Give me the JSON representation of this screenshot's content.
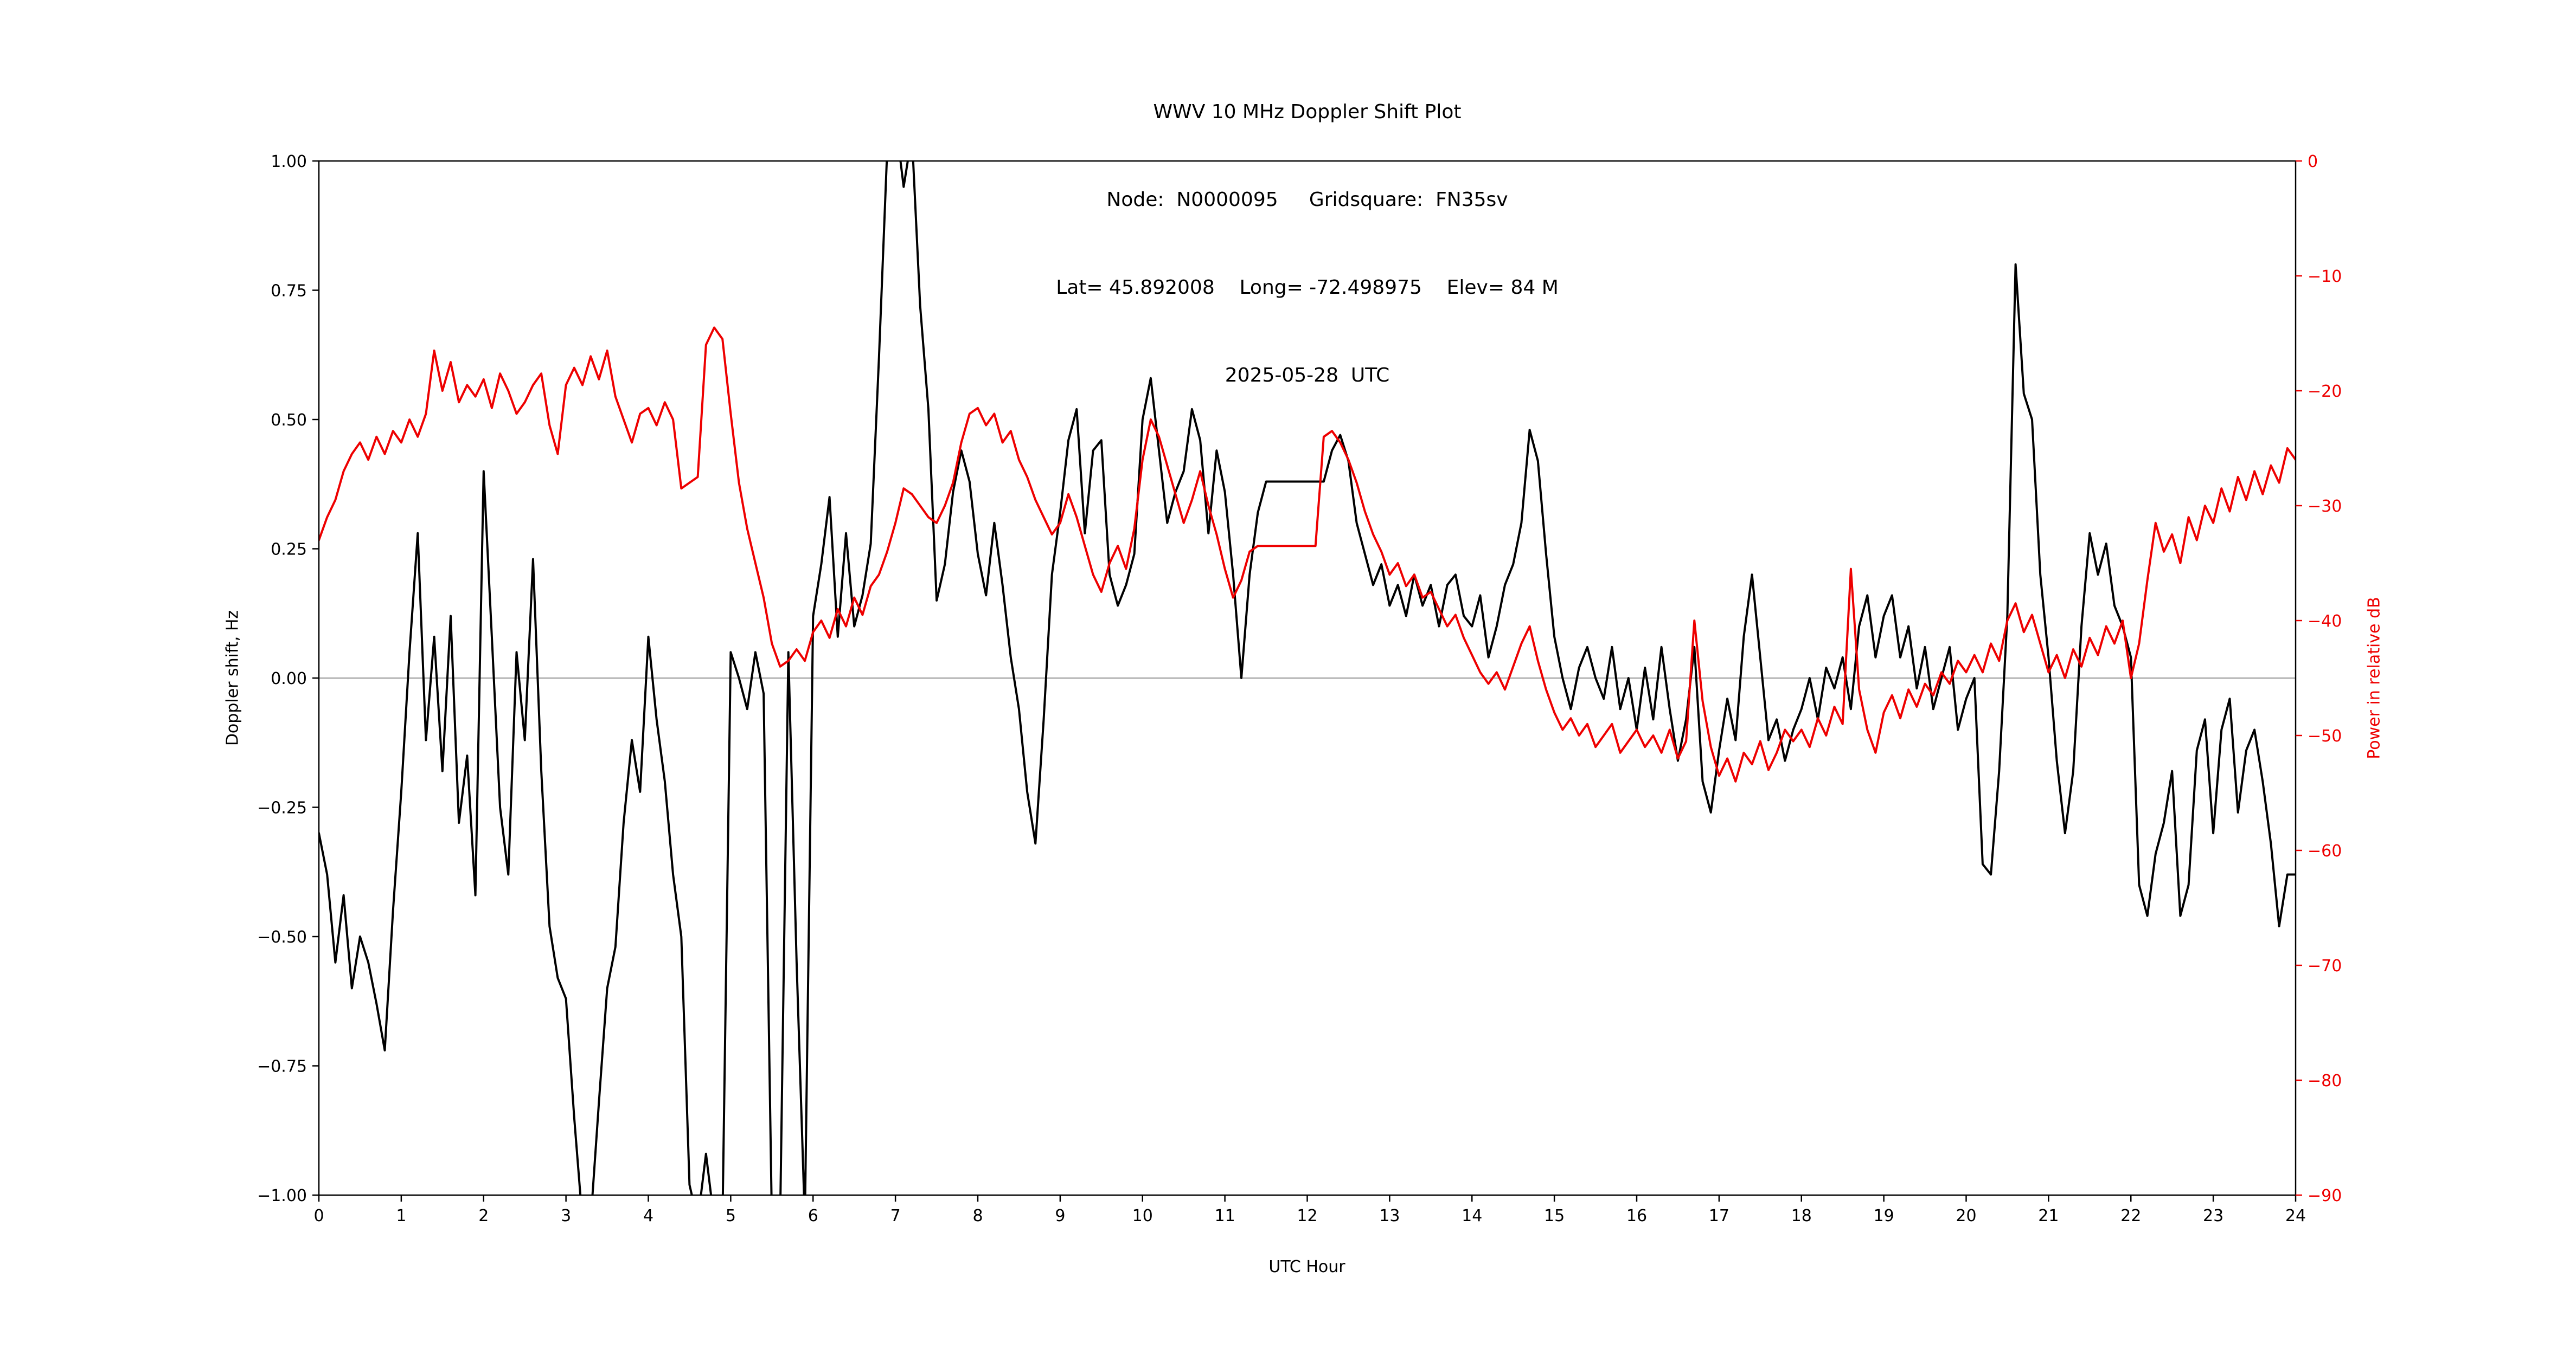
{
  "figure": {
    "background": "#ffffff"
  },
  "chart_data": {
    "type": "line",
    "title": "WWV 10 MHz Doppler Shift Plot",
    "subtitle_line2": "Node:  N0000095     Gridsquare:  FN35sv",
    "subtitle_line3": "Lat= 45.892008    Long= -72.498975    Elev= 84 M",
    "subtitle_line4": "2025-05-28  UTC",
    "xlabel": "UTC Hour",
    "ylabel_left": "Doppler shift, Hz",
    "ylabel_right": "Power in relative dB",
    "xlim": [
      0,
      24
    ],
    "ylim_left": [
      -1.0,
      1.0
    ],
    "ylim_right": [
      -90,
      0
    ],
    "grid": "zero-line-only",
    "legend": "none",
    "xtick_values": [
      0,
      1,
      2,
      3,
      4,
      5,
      6,
      7,
      8,
      9,
      10,
      11,
      12,
      13,
      14,
      15,
      16,
      17,
      18,
      19,
      20,
      21,
      22,
      23,
      24
    ],
    "xtick_labels": [
      "0",
      "1",
      "2",
      "3",
      "4",
      "5",
      "6",
      "7",
      "8",
      "9",
      "10",
      "11",
      "12",
      "13",
      "14",
      "15",
      "16",
      "17",
      "18",
      "19",
      "20",
      "21",
      "22",
      "23",
      "24"
    ],
    "ytick_left_values": [
      1.0,
      0.75,
      0.5,
      0.25,
      0.0,
      -0.25,
      -0.5,
      -0.75,
      -1.0
    ],
    "ytick_left_labels": [
      "1.00",
      "0.75",
      "0.50",
      "0.25",
      "0.00",
      "−0.25",
      "−0.50",
      "−0.75",
      "−1.00"
    ],
    "ytick_right_values": [
      0,
      -10,
      -20,
      -30,
      -40,
      -50,
      -60,
      -70,
      -80,
      -90
    ],
    "ytick_right_labels": [
      "0",
      "−10",
      "−20",
      "−30",
      "−40",
      "−50",
      "−60",
      "−70",
      "−80",
      "−90"
    ],
    "x_start": 0,
    "x_step": 0.1,
    "zero_line": {
      "y": 0.0,
      "color": "#999999"
    },
    "series": [
      {
        "name": "doppler_shift_hz",
        "axis": "left",
        "color": "#000000",
        "values": [
          -0.3,
          -0.38,
          -0.55,
          -0.42,
          -0.6,
          -0.5,
          -0.55,
          -0.63,
          -0.72,
          -0.45,
          -0.22,
          0.05,
          0.28,
          -0.12,
          0.08,
          -0.18,
          0.12,
          -0.28,
          -0.15,
          -0.42,
          0.4,
          0.08,
          -0.25,
          -0.38,
          0.05,
          -0.12,
          0.23,
          -0.18,
          -0.48,
          -0.58,
          -0.62,
          -0.85,
          -1.05,
          -1.05,
          -0.82,
          -0.6,
          -0.52,
          -0.28,
          -0.12,
          -0.22,
          0.08,
          -0.08,
          -0.2,
          -0.38,
          -0.5,
          -0.98,
          -1.05,
          -0.92,
          -1.05,
          -1.05,
          0.05,
          0.0,
          -0.06,
          0.05,
          -0.03,
          -1.05,
          -1.05,
          0.05,
          -0.55,
          -1.05,
          0.12,
          0.22,
          0.35,
          0.08,
          0.28,
          0.1,
          0.16,
          0.26,
          0.62,
          1.02,
          1.08,
          0.95,
          1.05,
          0.72,
          0.52,
          0.15,
          0.22,
          0.36,
          0.44,
          0.38,
          0.24,
          0.16,
          0.3,
          0.18,
          0.04,
          -0.06,
          -0.22,
          -0.32,
          -0.08,
          0.2,
          0.32,
          0.46,
          0.52,
          0.28,
          0.44,
          0.46,
          0.2,
          0.14,
          0.18,
          0.24,
          0.5,
          0.58,
          0.44,
          0.3,
          0.36,
          0.4,
          0.52,
          0.46,
          0.28,
          0.44,
          0.36,
          0.2,
          0.0,
          0.2,
          0.32,
          0.38,
          0.38,
          0.38,
          0.38,
          0.38,
          0.38,
          0.38,
          0.38,
          0.44,
          0.47,
          0.42,
          0.3,
          0.24,
          0.18,
          0.22,
          0.14,
          0.18,
          0.12,
          0.2,
          0.14,
          0.18,
          0.1,
          0.18,
          0.2,
          0.12,
          0.1,
          0.16,
          0.04,
          0.1,
          0.18,
          0.22,
          0.3,
          0.48,
          0.42,
          0.24,
          0.08,
          0.0,
          -0.06,
          0.02,
          0.06,
          0.0,
          -0.04,
          0.06,
          -0.06,
          0.0,
          -0.1,
          0.02,
          -0.08,
          0.06,
          -0.06,
          -0.16,
          -0.08,
          0.06,
          -0.2,
          -0.26,
          -0.14,
          -0.04,
          -0.12,
          0.08,
          0.2,
          0.04,
          -0.12,
          -0.08,
          -0.16,
          -0.1,
          -0.06,
          0.0,
          -0.08,
          0.02,
          -0.02,
          0.04,
          -0.06,
          0.1,
          0.16,
          0.04,
          0.12,
          0.16,
          0.04,
          0.1,
          -0.02,
          0.06,
          -0.06,
          0.0,
          0.06,
          -0.1,
          -0.04,
          0.0,
          -0.36,
          -0.38,
          -0.18,
          0.12,
          0.8,
          0.55,
          0.5,
          0.2,
          0.04,
          -0.16,
          -0.3,
          -0.18,
          0.1,
          0.28,
          0.2,
          0.26,
          0.14,
          0.1,
          0.04,
          -0.4,
          -0.46,
          -0.34,
          -0.28,
          -0.18,
          -0.46,
          -0.4,
          -0.14,
          -0.08,
          -0.3,
          -0.1,
          -0.04,
          -0.26,
          -0.14,
          -0.1,
          -0.2,
          -0.32,
          -0.48,
          -0.38,
          -0.38
        ]
      },
      {
        "name": "power_relative_db",
        "axis": "right",
        "color": "#ee0000",
        "values": [
          -33,
          -31,
          -29.5,
          -27,
          -25.5,
          -24.5,
          -26,
          -24,
          -25.5,
          -23.5,
          -24.5,
          -22.5,
          -24,
          -22,
          -16.5,
          -20,
          -17.5,
          -21,
          -19.5,
          -20.5,
          -19,
          -21.5,
          -18.5,
          -20,
          -22,
          -21,
          -19.5,
          -18.5,
          -23,
          -25.5,
          -19.5,
          -18,
          -19.5,
          -17,
          -19,
          -16.5,
          -20.5,
          -22.5,
          -24.5,
          -22,
          -21.5,
          -23,
          -21,
          -22.5,
          -28.5,
          -28,
          -27.5,
          -16,
          -14.5,
          -15.5,
          -22,
          -28,
          -32,
          -35,
          -38,
          -42,
          -44,
          -43.5,
          -42.5,
          -43.5,
          -41,
          -40,
          -41.5,
          -39,
          -40.5,
          -38,
          -39.5,
          -37,
          -36,
          -34,
          -31.5,
          -28.5,
          -29,
          -30,
          -31,
          -31.5,
          -30,
          -28,
          -24.5,
          -22,
          -21.5,
          -23,
          -22,
          -24.5,
          -23.5,
          -26,
          -27.5,
          -29.5,
          -31,
          -32.5,
          -31.5,
          -29,
          -31,
          -33.5,
          -36,
          -37.5,
          -35,
          -33.5,
          -35.5,
          -32,
          -26,
          -22.5,
          -24,
          -26.5,
          -29,
          -31.5,
          -29.5,
          -27,
          -30,
          -32.5,
          -35.5,
          -38,
          -36.5,
          -34,
          -33.5,
          -33.5,
          -33.5,
          -33.5,
          -33.5,
          -33.5,
          -33.5,
          -33.5,
          -24,
          -23.5,
          -24.5,
          -26,
          -28,
          -30.5,
          -32.5,
          -34,
          -36,
          -35,
          -37,
          -36,
          -38,
          -37.5,
          -39,
          -40.5,
          -39.5,
          -41.5,
          -43,
          -44.5,
          -45.5,
          -44.5,
          -46,
          -44,
          -42,
          -40.5,
          -43.5,
          -46,
          -48,
          -49.5,
          -48.5,
          -50,
          -49,
          -51,
          -50,
          -49,
          -51.5,
          -50.5,
          -49.5,
          -51,
          -50,
          -51.5,
          -49.5,
          -52,
          -50.5,
          -40,
          -47,
          -51,
          -53.5,
          -52,
          -54,
          -51.5,
          -52.5,
          -50.5,
          -53,
          -51.5,
          -49.5,
          -50.5,
          -49.5,
          -51,
          -48.5,
          -50,
          -47.5,
          -49,
          -35.5,
          -46,
          -49.5,
          -51.5,
          -48,
          -46.5,
          -48.5,
          -46,
          -47.5,
          -45.5,
          -46.5,
          -44.5,
          -45.5,
          -43.5,
          -44.5,
          -43,
          -44.5,
          -42,
          -43.5,
          -40,
          -38.5,
          -41,
          -39.5,
          -42,
          -44.5,
          -43,
          -45,
          -42.5,
          -44,
          -41.5,
          -43,
          -40.5,
          -42,
          -40,
          -45,
          -42,
          -36.5,
          -31.5,
          -34,
          -32.5,
          -35,
          -31,
          -33,
          -30,
          -31.5,
          -28.5,
          -30.5,
          -27.5,
          -29.5,
          -27,
          -29,
          -26.5,
          -28,
          -25,
          -26
        ]
      }
    ]
  },
  "colors": {
    "left_axis": "#000000",
    "right_axis": "#ee0000",
    "spine": "#000000",
    "zero_line": "#999999",
    "background": "#ffffff"
  }
}
